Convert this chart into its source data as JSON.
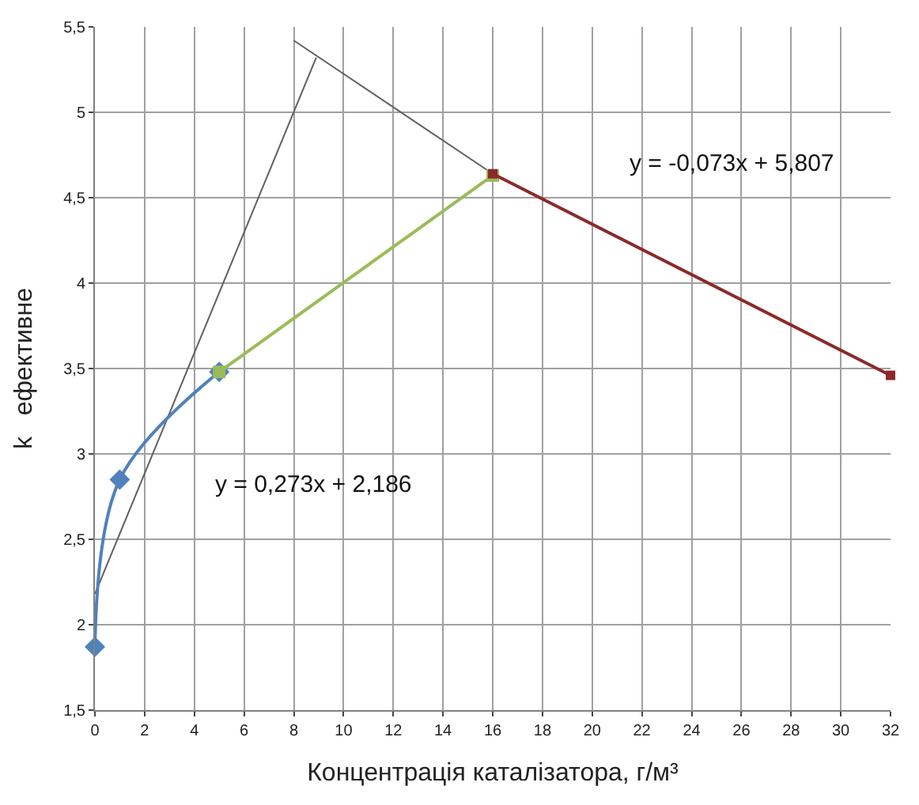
{
  "chart_data": {
    "type": "line",
    "xlabel": "Концентрація каталізатора, г/м³",
    "ylabel": "k   ефективне",
    "xlim": [
      0,
      32
    ],
    "xticks": [
      0,
      2,
      4,
      6,
      8,
      10,
      12,
      14,
      16,
      18,
      20,
      22,
      24,
      26,
      28,
      30,
      32
    ],
    "ylim": [
      1.5,
      5.5
    ],
    "yticks": [
      {
        "value": 1.5,
        "label": "1,5"
      },
      2,
      {
        "value": 2.5,
        "label": "2,5"
      },
      3,
      {
        "value": 3.5,
        "label": "3,5"
      },
      4,
      {
        "value": 4.5,
        "label": "4,5"
      },
      5,
      {
        "value": 5.5,
        "label": "5,5"
      }
    ],
    "grid": true,
    "series": [
      {
        "color": "#4f81bd",
        "x": [
          0,
          1,
          5
        ],
        "values": [
          1.87,
          2.85,
          3.48
        ],
        "marker": "diamond"
      },
      {
        "color": "#9bbb59",
        "x": [
          5,
          16
        ],
        "values": [
          3.48,
          4.63
        ],
        "marker": "square"
      },
      {
        "color": "#8b2a2a",
        "x": [
          16,
          32
        ],
        "values": [
          4.64,
          3.46
        ],
        "marker": "square"
      },
      {
        "color": "#606060",
        "x": [
          0,
          8.9
        ],
        "values": [
          2.18,
          5.32
        ],
        "marker": "none"
      },
      {
        "color": "#606060",
        "x": [
          8,
          16
        ],
        "values": [
          5.42,
          4.64
        ],
        "marker": "none"
      }
    ],
    "annotations": [
      "y = -0,073x + 5,807",
      "y = 0,273x + 2,186"
    ]
  }
}
